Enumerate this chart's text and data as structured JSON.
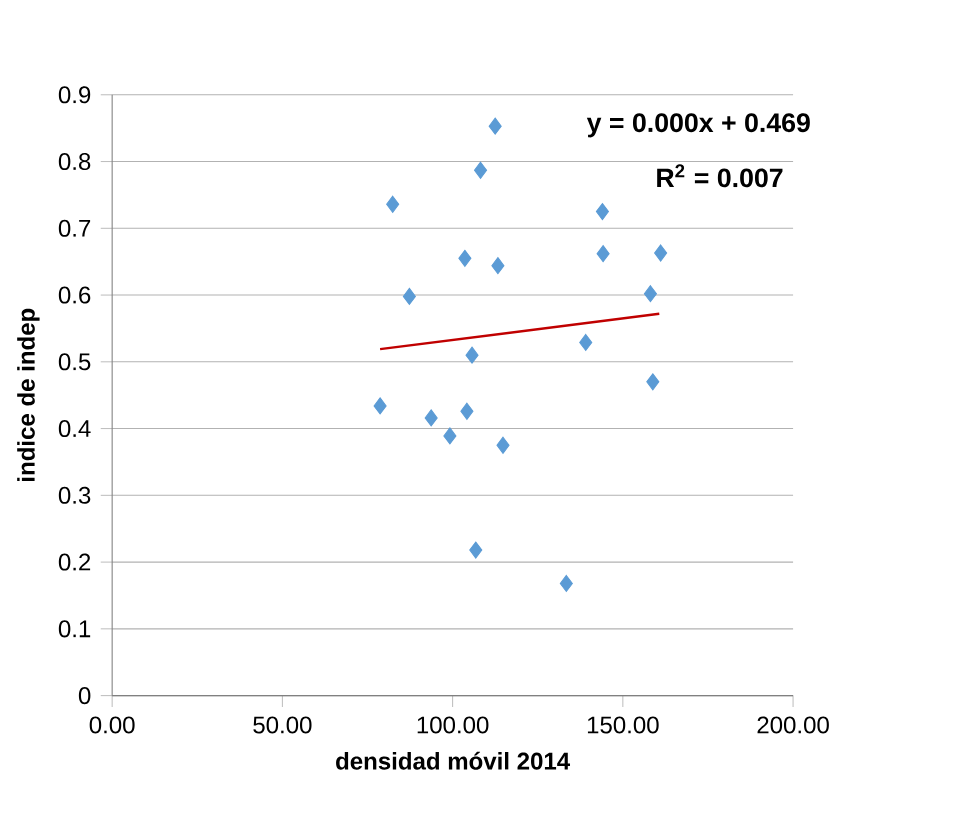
{
  "chart_data": {
    "type": "scatter",
    "xlabel": "densidad móvil 2014",
    "ylabel": "indice de indep",
    "marker": "diamond",
    "grid": "y",
    "xlim": [
      0,
      200
    ],
    "ylim": [
      0,
      0.9
    ],
    "xticks": [
      {
        "value": 0,
        "label": "0.00"
      },
      {
        "value": 50,
        "label": "50.00"
      },
      {
        "value": 100,
        "label": "100.00"
      },
      {
        "value": 150,
        "label": "150.00"
      },
      {
        "value": 200,
        "label": "200.00"
      }
    ],
    "yticks": [
      0,
      0.1,
      0.2,
      0.3,
      0.4,
      0.5,
      0.6,
      0.7,
      0.8,
      0.9
    ],
    "series": [
      {
        "color": "#5b9bd5",
        "x": [
          78.7,
          82.4,
          87.3,
          93.7,
          99.2,
          103.6,
          104.2,
          105.7,
          106.8,
          108.2,
          112.5,
          113.3,
          114.8,
          133.4,
          139.1,
          144.0,
          144.2,
          158.1,
          158.8,
          161.1
        ],
        "values": [
          0.434,
          0.736,
          0.598,
          0.416,
          0.389,
          0.655,
          0.426,
          0.51,
          0.218,
          0.787,
          0.853,
          0.644,
          0.375,
          0.168,
          0.529,
          0.725,
          0.662,
          0.602,
          0.47,
          0.663
        ]
      },
      {
        "type": "line",
        "marker": "none",
        "color": "#c00000",
        "x": [
          78.7,
          160.7
        ],
        "values": [
          0.519,
          0.572
        ]
      }
    ],
    "annotations": [
      "y = 0.000x + 0.469",
      "R$^{2}$ = 0.007"
    ]
  }
}
